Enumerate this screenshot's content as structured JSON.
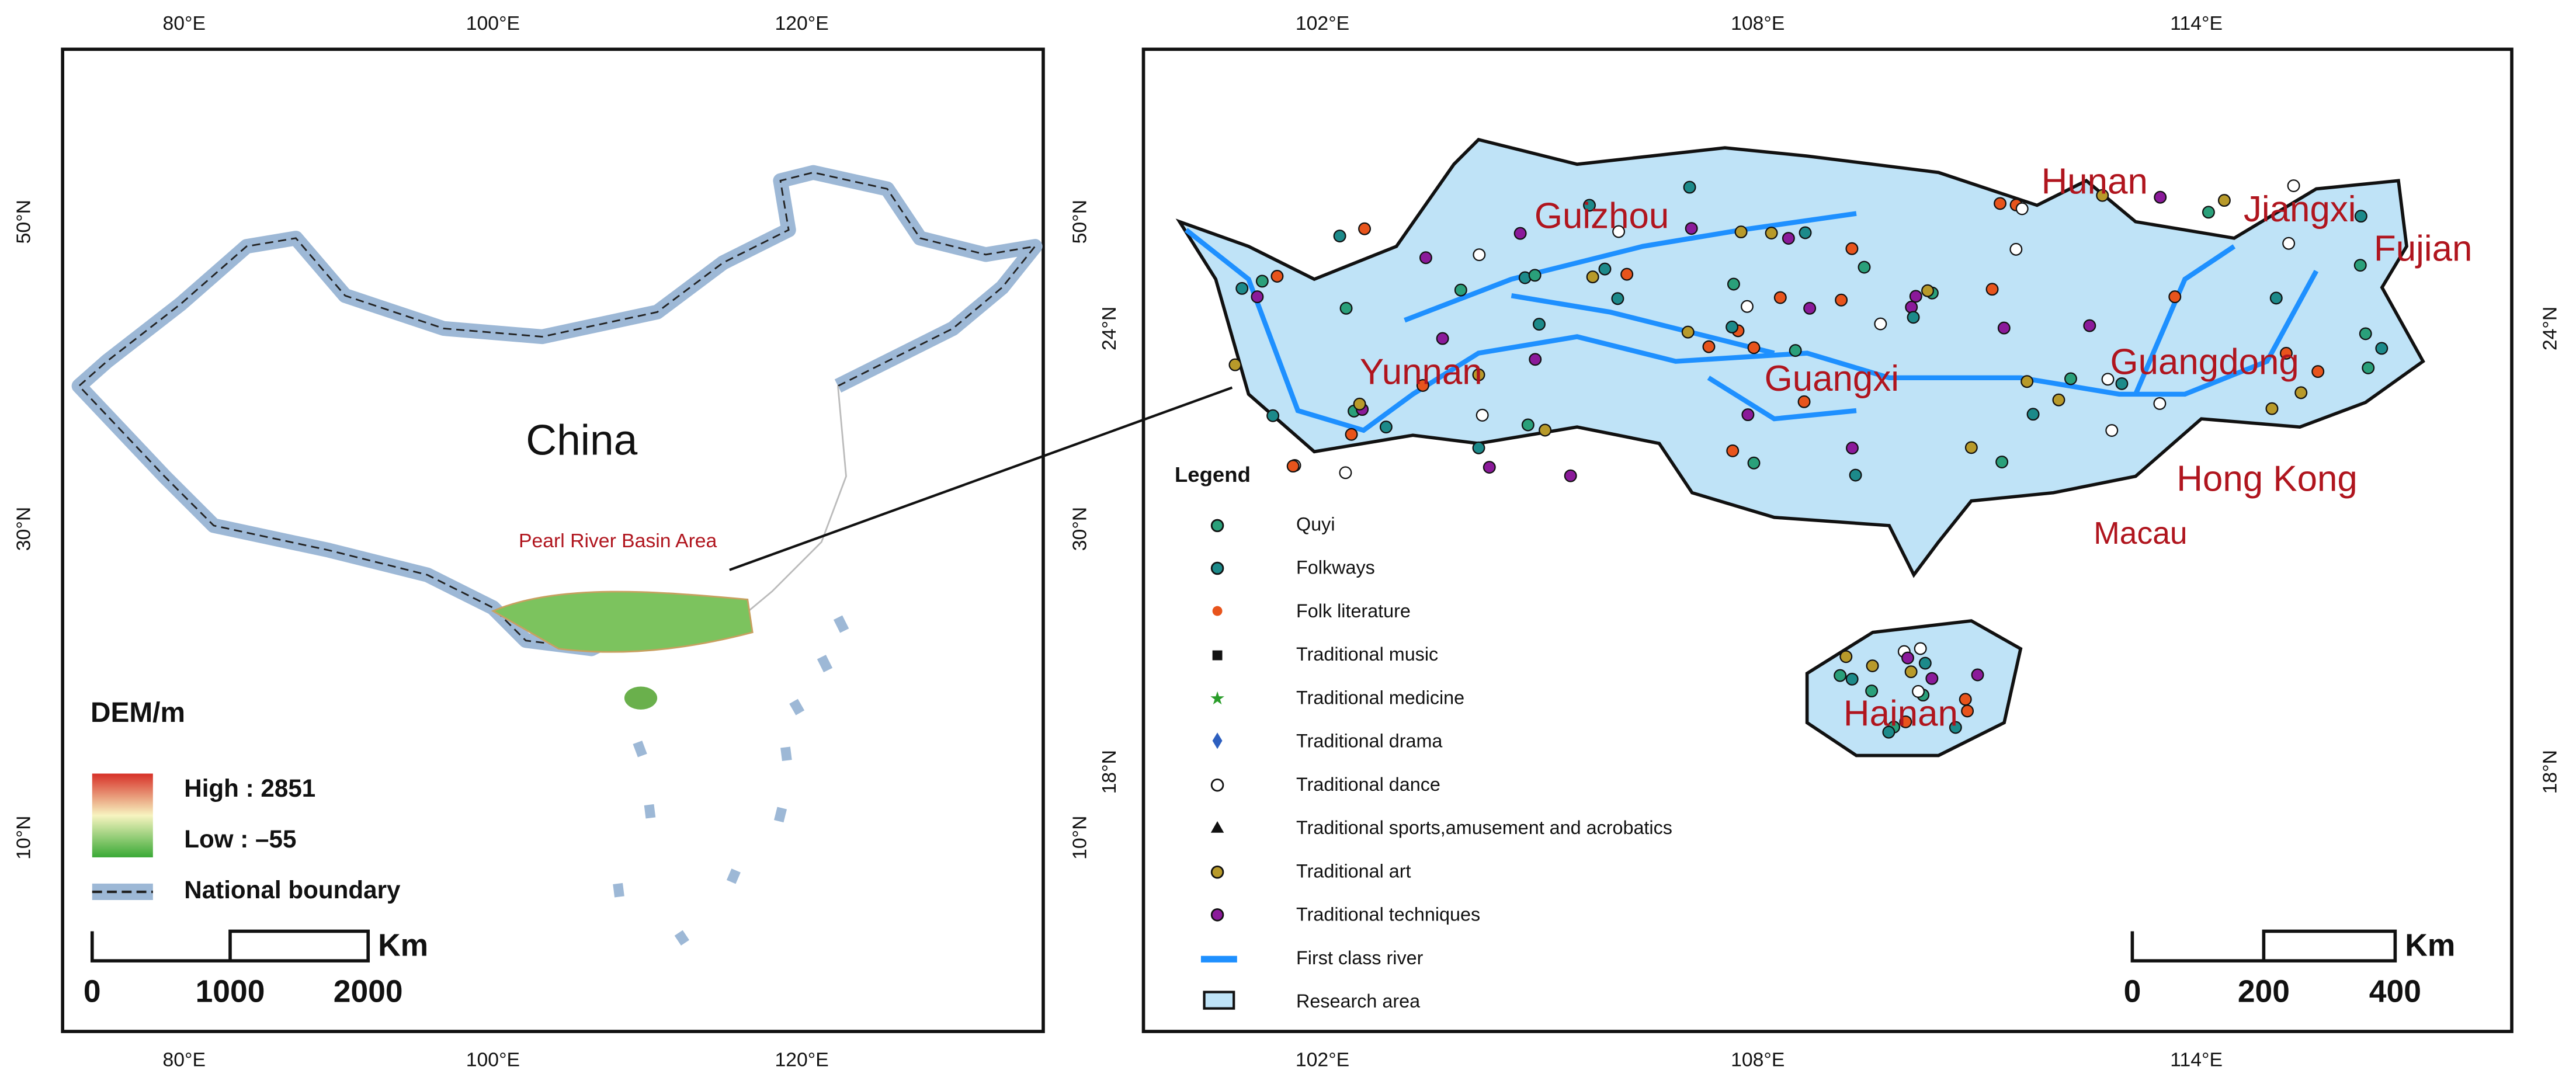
{
  "left_map": {
    "lon_labels_top": [
      "80°E",
      "100°E",
      "120°E"
    ],
    "lon_labels_bottom": [
      "80°E",
      "100°E",
      "120°E"
    ],
    "lat_labels_left": [
      "50°N",
      "30°N",
      "10°N"
    ],
    "lat_labels_right": [
      "50°N",
      "30°N",
      "10°N"
    ],
    "country": "China",
    "basin": "Pearl River Basin Area",
    "legend": {
      "title": "DEM/m",
      "high": "High : 2851",
      "low": "Low : –55",
      "boundary": "National boundary"
    },
    "scale": {
      "unit": "Km",
      "labels": [
        "0",
        "1000",
        "2000"
      ]
    }
  },
  "right_map": {
    "lon_labels_top": [
      "102°E",
      "108°E",
      "114°E"
    ],
    "lon_labels_bottom": [
      "102°E",
      "108°E",
      "114°E"
    ],
    "lat_labels_left": [
      "24°N",
      "18°N"
    ],
    "lat_labels_right": [
      "24°N",
      "18°N"
    ],
    "regions": [
      "Guizhou",
      "Yunnan",
      "Guangxi",
      "Hunan",
      "Jiangxi",
      "Fujian",
      "Guangdong",
      "Hong Kong",
      "Macau",
      "Hainan"
    ],
    "legend": {
      "title": "Legend",
      "items": [
        "Quyi",
        "Folkways",
        "Folk literature",
        "Traditional music",
        "Traditional medicine",
        "Traditional drama",
        "Traditional dance",
        "Traditional sports,amusement and acrobatics",
        "Traditional art",
        "Traditional techniques",
        "First class river",
        "Research area"
      ]
    },
    "scale": {
      "unit": "Km",
      "labels": [
        "0",
        "200",
        "400"
      ]
    }
  }
}
